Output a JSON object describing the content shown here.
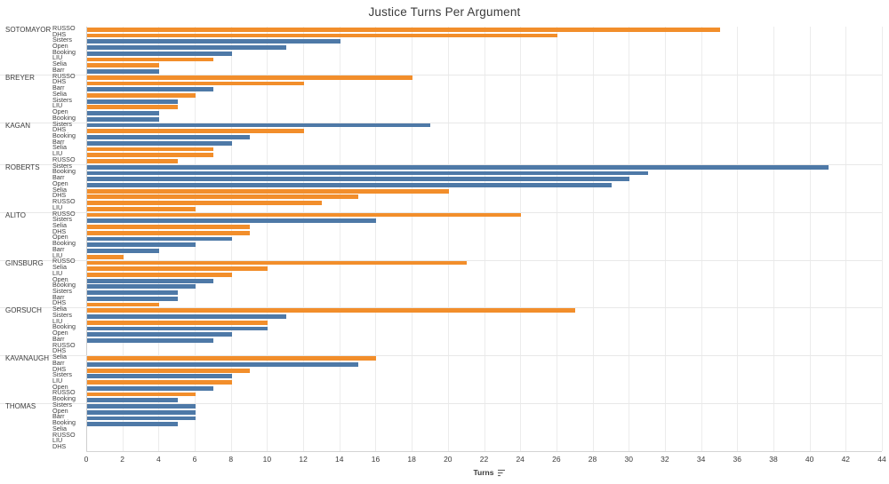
{
  "chart_data": {
    "type": "bar",
    "orientation": "horizontal",
    "title": "Justice Turns Per Argument",
    "xlabel": "Turns",
    "ylabel": "",
    "xlim": [
      0,
      44
    ],
    "ticks": [
      0,
      2,
      4,
      6,
      8,
      10,
      12,
      14,
      16,
      18,
      20,
      22,
      24,
      26,
      28,
      30,
      32,
      34,
      36,
      38,
      40,
      42,
      44
    ],
    "grid": true,
    "colors": {
      "orange": "#F28E2B",
      "blue": "#4E79A7"
    },
    "groups": [
      {
        "justice": "SOTOMAYOR",
        "rows": [
          {
            "case": "RUSSO",
            "value": 35,
            "color": "orange"
          },
          {
            "case": "DHS",
            "value": 26,
            "color": "orange"
          },
          {
            "case": "Sisters",
            "value": 14,
            "color": "blue"
          },
          {
            "case": "Open",
            "value": 11,
            "color": "blue"
          },
          {
            "case": "Booking",
            "value": 8,
            "color": "blue"
          },
          {
            "case": "LIU",
            "value": 7,
            "color": "orange"
          },
          {
            "case": "Selia",
            "value": 4,
            "color": "orange"
          },
          {
            "case": "Barr",
            "value": 4,
            "color": "blue"
          }
        ]
      },
      {
        "justice": "BREYER",
        "rows": [
          {
            "case": "RUSSO",
            "value": 18,
            "color": "orange"
          },
          {
            "case": "DHS",
            "value": 12,
            "color": "orange"
          },
          {
            "case": "Barr",
            "value": 7,
            "color": "blue"
          },
          {
            "case": "Selia",
            "value": 6,
            "color": "orange"
          },
          {
            "case": "Sisters",
            "value": 5,
            "color": "blue"
          },
          {
            "case": "LIU",
            "value": 5,
            "color": "orange"
          },
          {
            "case": "Open",
            "value": 4,
            "color": "blue"
          },
          {
            "case": "Booking",
            "value": 4,
            "color": "blue"
          }
        ]
      },
      {
        "justice": "KAGAN",
        "rows": [
          {
            "case": "Sisters",
            "value": 19,
            "color": "blue"
          },
          {
            "case": "DHS",
            "value": 12,
            "color": "orange"
          },
          {
            "case": "Booking",
            "value": 9,
            "color": "blue"
          },
          {
            "case": "Barr",
            "value": 8,
            "color": "blue"
          },
          {
            "case": "Selia",
            "value": 7,
            "color": "orange"
          },
          {
            "case": "LIU",
            "value": 7,
            "color": "orange"
          },
          {
            "case": "RUSSO",
            "value": 5,
            "color": "orange"
          }
        ]
      },
      {
        "justice": "ROBERTS",
        "rows": [
          {
            "case": "Sisters",
            "value": 41,
            "color": "blue"
          },
          {
            "case": "Booking",
            "value": 31,
            "color": "blue"
          },
          {
            "case": "Barr",
            "value": 30,
            "color": "blue"
          },
          {
            "case": "Open",
            "value": 29,
            "color": "blue"
          },
          {
            "case": "Selia",
            "value": 20,
            "color": "orange"
          },
          {
            "case": "DHS",
            "value": 15,
            "color": "orange"
          },
          {
            "case": "RUSSO",
            "value": 13,
            "color": "orange"
          },
          {
            "case": "LIU",
            "value": 6,
            "color": "orange"
          }
        ]
      },
      {
        "justice": "ALITO",
        "rows": [
          {
            "case": "RUSSO",
            "value": 24,
            "color": "orange"
          },
          {
            "case": "Sisters",
            "value": 16,
            "color": "blue"
          },
          {
            "case": "Selia",
            "value": 9,
            "color": "orange"
          },
          {
            "case": "DHS",
            "value": 9,
            "color": "orange"
          },
          {
            "case": "Open",
            "value": 8,
            "color": "blue"
          },
          {
            "case": "Booking",
            "value": 6,
            "color": "blue"
          },
          {
            "case": "Barr",
            "value": 4,
            "color": "blue"
          },
          {
            "case": "LIU",
            "value": 2,
            "color": "orange"
          }
        ]
      },
      {
        "justice": "GINSBURG",
        "rows": [
          {
            "case": "RUSSO",
            "value": 21,
            "color": "orange"
          },
          {
            "case": "Selia",
            "value": 10,
            "color": "orange"
          },
          {
            "case": "LIU",
            "value": 8,
            "color": "orange"
          },
          {
            "case": "Open",
            "value": 7,
            "color": "blue"
          },
          {
            "case": "Booking",
            "value": 6,
            "color": "blue"
          },
          {
            "case": "Sisters",
            "value": 5,
            "color": "blue"
          },
          {
            "case": "Barr",
            "value": 5,
            "color": "blue"
          },
          {
            "case": "DHS",
            "value": 4,
            "color": "orange"
          }
        ]
      },
      {
        "justice": "GORSUCH",
        "rows": [
          {
            "case": "Selia",
            "value": 27,
            "color": "orange"
          },
          {
            "case": "Sisters",
            "value": 11,
            "color": "blue"
          },
          {
            "case": "LIU",
            "value": 10,
            "color": "orange"
          },
          {
            "case": "Booking",
            "value": 10,
            "color": "blue"
          },
          {
            "case": "Open",
            "value": 8,
            "color": "blue"
          },
          {
            "case": "Barr",
            "value": 7,
            "color": "blue"
          },
          {
            "case": "RUSSO",
            "value": 0,
            "color": "orange"
          },
          {
            "case": "DHS",
            "value": 0,
            "color": "orange"
          }
        ]
      },
      {
        "justice": "KAVANAUGH",
        "rows": [
          {
            "case": "Selia",
            "value": 16,
            "color": "orange"
          },
          {
            "case": "Barr",
            "value": 15,
            "color": "blue"
          },
          {
            "case": "DHS",
            "value": 9,
            "color": "orange"
          },
          {
            "case": "Sisters",
            "value": 8,
            "color": "blue"
          },
          {
            "case": "LIU",
            "value": 8,
            "color": "orange"
          },
          {
            "case": "Open",
            "value": 7,
            "color": "blue"
          },
          {
            "case": "RUSSO",
            "value": 6,
            "color": "orange"
          },
          {
            "case": "Booking",
            "value": 5,
            "color": "blue"
          }
        ]
      },
      {
        "justice": "THOMAS",
        "rows": [
          {
            "case": "Sisters",
            "value": 6,
            "color": "blue"
          },
          {
            "case": "Open",
            "value": 6,
            "color": "blue"
          },
          {
            "case": "Barr",
            "value": 6,
            "color": "blue"
          },
          {
            "case": "Booking",
            "value": 5,
            "color": "blue"
          },
          {
            "case": "Selia",
            "value": 0,
            "color": "orange"
          },
          {
            "case": "RUSSO",
            "value": 0,
            "color": "orange"
          },
          {
            "case": "LIU",
            "value": 0,
            "color": "orange"
          },
          {
            "case": "DHS",
            "value": 0,
            "color": "orange"
          }
        ]
      }
    ]
  }
}
